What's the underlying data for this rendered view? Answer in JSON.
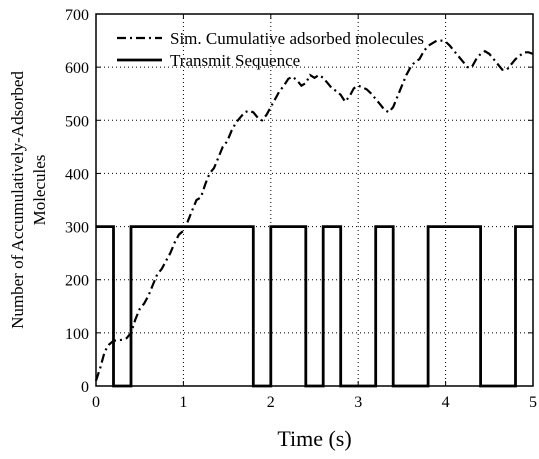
{
  "chart_data": {
    "type": "line",
    "title": "",
    "xlabel": "Time (s)",
    "ylabel_lines": [
      "Number of Accumulatively-Adsorbed",
      "Molecules"
    ],
    "xlim": [
      0,
      5
    ],
    "ylim": [
      0,
      700
    ],
    "xticks": [
      0,
      1,
      2,
      3,
      4,
      5
    ],
    "yticks": [
      0,
      100,
      200,
      300,
      400,
      500,
      600,
      700
    ],
    "xtick_labels": [
      "0",
      "1",
      "2",
      "3",
      "4",
      "5"
    ],
    "ytick_labels": [
      "0",
      "100",
      "200",
      "300",
      "400",
      "500",
      "600",
      "700"
    ],
    "grid": true,
    "legend_position": "top-right",
    "series": [
      {
        "name": "Sim. Cumulative adsorbed molecules",
        "style": "dash-dot",
        "color": "#000000",
        "x": [
          0.0,
          0.05,
          0.1,
          0.15,
          0.2,
          0.25,
          0.3,
          0.35,
          0.4,
          0.45,
          0.5,
          0.55,
          0.6,
          0.65,
          0.7,
          0.75,
          0.8,
          0.85,
          0.9,
          0.95,
          1.0,
          1.05,
          1.1,
          1.15,
          1.2,
          1.25,
          1.3,
          1.35,
          1.4,
          1.45,
          1.5,
          1.55,
          1.6,
          1.65,
          1.7,
          1.75,
          1.8,
          1.85,
          1.9,
          1.95,
          2.0,
          2.05,
          2.1,
          2.15,
          2.2,
          2.25,
          2.3,
          2.35,
          2.4,
          2.45,
          2.5,
          2.55,
          2.6,
          2.65,
          2.7,
          2.75,
          2.8,
          2.85,
          2.9,
          2.95,
          3.0,
          3.05,
          3.1,
          3.15,
          3.2,
          3.25,
          3.3,
          3.35,
          3.4,
          3.45,
          3.5,
          3.55,
          3.6,
          3.65,
          3.7,
          3.75,
          3.8,
          3.85,
          3.9,
          3.95,
          4.0,
          4.05,
          4.1,
          4.15,
          4.2,
          4.25,
          4.3,
          4.35,
          4.4,
          4.45,
          4.5,
          4.55,
          4.6,
          4.65,
          4.7,
          4.75,
          4.8,
          4.85,
          4.9,
          4.95,
          5.0
        ],
        "y": [
          10,
          35,
          65,
          78,
          85,
          86,
          87,
          90,
          100,
          125,
          145,
          155,
          170,
          190,
          210,
          220,
          235,
          250,
          270,
          285,
          292,
          310,
          330,
          350,
          355,
          380,
          400,
          410,
          430,
          450,
          460,
          480,
          495,
          505,
          515,
          518,
          515,
          505,
          500,
          510,
          525,
          540,
          555,
          565,
          578,
          582,
          575,
          565,
          570,
          585,
          580,
          585,
          580,
          570,
          560,
          555,
          548,
          535,
          545,
          560,
          565,
          562,
          558,
          550,
          540,
          530,
          520,
          515,
          525,
          545,
          565,
          585,
          600,
          610,
          615,
          630,
          640,
          645,
          650,
          650,
          648,
          640,
          630,
          620,
          610,
          600,
          600,
          615,
          625,
          630,
          625,
          615,
          605,
          595,
          595,
          605,
          615,
          622,
          628,
          628,
          625
        ]
      },
      {
        "name": "Transmit Sequence",
        "style": "solid",
        "color": "#000000",
        "x": [
          0.0,
          0.2,
          0.2,
          0.4,
          0.4,
          1.8,
          1.8,
          2.0,
          2.0,
          2.4,
          2.4,
          2.6,
          2.6,
          2.8,
          2.8,
          3.2,
          3.2,
          3.4,
          3.4,
          3.8,
          3.8,
          4.4,
          4.4,
          4.8,
          4.8,
          5.0
        ],
        "y": [
          300,
          300,
          0,
          0,
          300,
          300,
          0,
          0,
          300,
          300,
          0,
          0,
          300,
          300,
          0,
          0,
          300,
          300,
          0,
          0,
          300,
          300,
          0,
          0,
          300,
          300
        ]
      }
    ]
  }
}
